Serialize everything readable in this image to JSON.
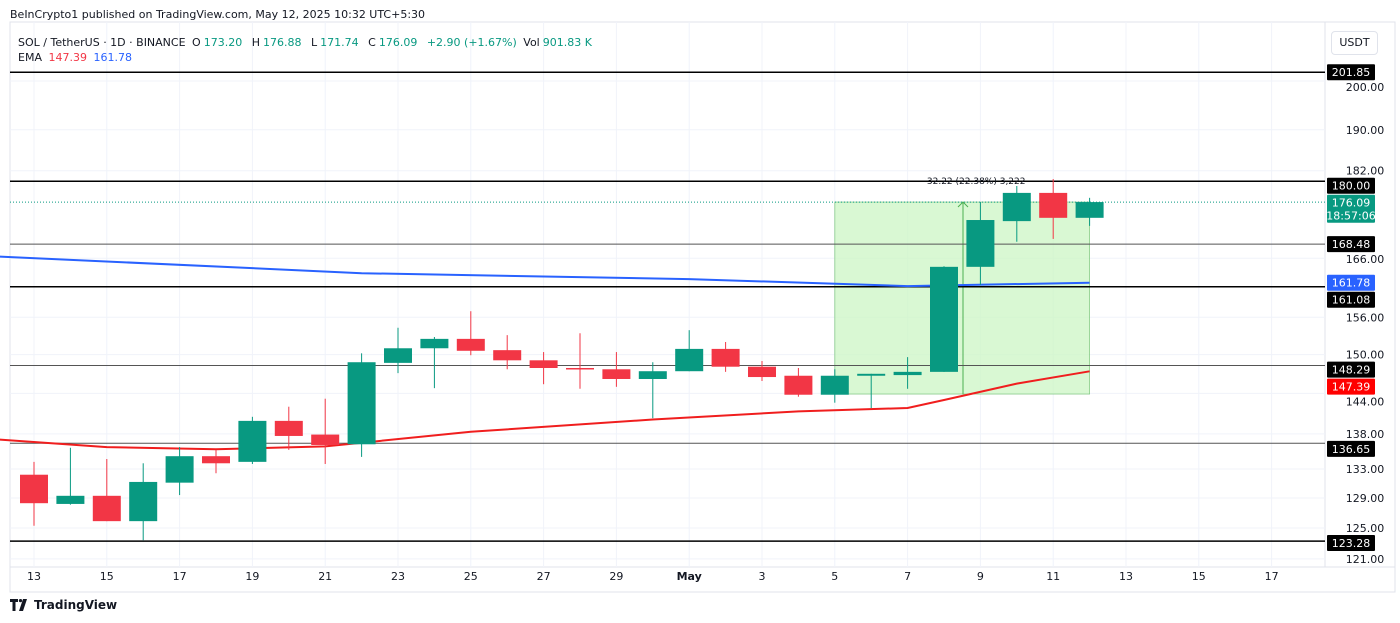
{
  "header": {
    "published": "BeInCrypto1 published on TradingView.com, May 12, 2025 10:32 UTC+5:30"
  },
  "legend": {
    "symbol": "SOL / TetherUS · 1D · BINANCE",
    "o_label": "O",
    "o": "173.20",
    "h_label": "H",
    "h": "176.88",
    "l_label": "L",
    "l": "171.74",
    "c_label": "C",
    "c": "176.09",
    "change": "+2.90 (+1.67%)",
    "vol_label": "Vol",
    "vol": "901.83 K",
    "ema_label": "EMA",
    "ema1": "147.39",
    "ema2": "161.78"
  },
  "currency_button": "USDT",
  "footer": {
    "logo_text": "TradingView"
  },
  "colors": {
    "up": "#089981",
    "down": "#f23645",
    "ema_slow": "#f01e1e",
    "ema_fast": "#2962ff",
    "measure_fill": "#ccf5c4",
    "measure_line": "#4caf50"
  },
  "chart_data": {
    "type": "candlestick",
    "y_scale": "log",
    "ylim": [
      120,
      205
    ],
    "grid": true,
    "y_ticks": [
      "200.00",
      "190.00",
      "182.00",
      "166.00",
      "156.00",
      "150.00",
      "144.00",
      "138.00",
      "133.00",
      "129.00",
      "125.00",
      "121.00"
    ],
    "x_ticks": [
      {
        "label": "13",
        "date": "2025-04-13"
      },
      {
        "label": "15",
        "date": "2025-04-15"
      },
      {
        "label": "17",
        "date": "2025-04-17"
      },
      {
        "label": "19",
        "date": "2025-04-19"
      },
      {
        "label": "21",
        "date": "2025-04-21"
      },
      {
        "label": "23",
        "date": "2025-04-23"
      },
      {
        "label": "25",
        "date": "2025-04-25"
      },
      {
        "label": "27",
        "date": "2025-04-27"
      },
      {
        "label": "29",
        "date": "2025-04-29"
      },
      {
        "label": "May",
        "date": "2025-05-01"
      },
      {
        "label": "3",
        "date": "2025-05-03"
      },
      {
        "label": "5",
        "date": "2025-05-05"
      },
      {
        "label": "7",
        "date": "2025-05-07"
      },
      {
        "label": "9",
        "date": "2025-05-09"
      },
      {
        "label": "11",
        "date": "2025-05-11"
      },
      {
        "label": "13",
        "date": "2025-05-13"
      },
      {
        "label": "15",
        "date": "2025-05-15"
      },
      {
        "label": "17",
        "date": "2025-05-17"
      }
    ],
    "candles": [
      {
        "date": "2025-04-13",
        "o": 132.2,
        "h": 134.0,
        "l": 125.3,
        "c": 128.3
      },
      {
        "date": "2025-04-14",
        "o": 128.2,
        "h": 136.0,
        "l": 128.1,
        "c": 129.3
      },
      {
        "date": "2025-04-15",
        "o": 129.3,
        "h": 134.4,
        "l": 125.9,
        "c": 125.9
      },
      {
        "date": "2025-04-16",
        "o": 125.9,
        "h": 133.8,
        "l": 123.4,
        "c": 131.2
      },
      {
        "date": "2025-04-17",
        "o": 131.1,
        "h": 136.1,
        "l": 129.4,
        "c": 134.8
      },
      {
        "date": "2025-04-18",
        "o": 134.8,
        "h": 135.7,
        "l": 132.4,
        "c": 133.8
      },
      {
        "date": "2025-04-19",
        "o": 134.0,
        "h": 140.5,
        "l": 133.7,
        "c": 139.9
      },
      {
        "date": "2025-04-20",
        "o": 139.9,
        "h": 142.0,
        "l": 135.7,
        "c": 137.7
      },
      {
        "date": "2025-04-21",
        "o": 137.9,
        "h": 143.2,
        "l": 133.7,
        "c": 136.4
      },
      {
        "date": "2025-04-22",
        "o": 136.5,
        "h": 150.2,
        "l": 134.7,
        "c": 148.8
      },
      {
        "date": "2025-04-23",
        "o": 148.7,
        "h": 154.3,
        "l": 147.1,
        "c": 151.0
      },
      {
        "date": "2025-04-24",
        "o": 151.0,
        "h": 152.8,
        "l": 144.8,
        "c": 152.5
      },
      {
        "date": "2025-04-25",
        "o": 152.5,
        "h": 157.0,
        "l": 149.9,
        "c": 150.6
      },
      {
        "date": "2025-04-26",
        "o": 150.7,
        "h": 153.1,
        "l": 147.7,
        "c": 149.1
      },
      {
        "date": "2025-04-27",
        "o": 149.1,
        "h": 150.4,
        "l": 145.4,
        "c": 147.9
      },
      {
        "date": "2025-04-28",
        "o": 147.9,
        "h": 153.4,
        "l": 144.7,
        "c": 147.7
      },
      {
        "date": "2025-04-29",
        "o": 147.7,
        "h": 150.4,
        "l": 145.0,
        "c": 146.2
      },
      {
        "date": "2025-04-30",
        "o": 146.2,
        "h": 148.8,
        "l": 140.3,
        "c": 147.4
      },
      {
        "date": "2025-05-01",
        "o": 147.4,
        "h": 153.9,
        "l": 147.4,
        "c": 150.9
      },
      {
        "date": "2025-05-02",
        "o": 150.9,
        "h": 152.0,
        "l": 147.3,
        "c": 148.1
      },
      {
        "date": "2025-05-03",
        "o": 148.1,
        "h": 149.0,
        "l": 145.9,
        "c": 146.5
      },
      {
        "date": "2025-05-04",
        "o": 146.7,
        "h": 147.9,
        "l": 143.5,
        "c": 143.8
      },
      {
        "date": "2025-05-05",
        "o": 143.8,
        "h": 147.7,
        "l": 142.6,
        "c": 146.7
      },
      {
        "date": "2025-05-06",
        "o": 146.7,
        "h": 147.0,
        "l": 141.8,
        "c": 147.0
      },
      {
        "date": "2025-05-07",
        "o": 146.8,
        "h": 149.6,
        "l": 144.7,
        "c": 147.3
      },
      {
        "date": "2025-05-08",
        "o": 147.3,
        "h": 164.6,
        "l": 147.3,
        "c": 164.5
      },
      {
        "date": "2025-05-09",
        "o": 164.5,
        "h": 176.1,
        "l": 161.4,
        "c": 172.8
      },
      {
        "date": "2025-05-10",
        "o": 172.6,
        "h": 179.1,
        "l": 168.9,
        "c": 177.8
      },
      {
        "date": "2025-05-11",
        "o": 177.8,
        "h": 180.4,
        "l": 169.4,
        "c": 173.2
      },
      {
        "date": "2025-05-12",
        "o": 173.2,
        "h": 176.88,
        "l": 171.74,
        "c": 176.09
      }
    ],
    "ema_fast": [
      {
        "date": "2025-04-13",
        "v": 166.2
      },
      {
        "date": "2025-04-22",
        "v": 163.4
      },
      {
        "date": "2025-05-01",
        "v": 162.4
      },
      {
        "date": "2025-05-07",
        "v": 161.2
      },
      {
        "date": "2025-05-12",
        "v": 161.78
      }
    ],
    "ema_slow": [
      {
        "date": "2025-04-13",
        "v": 137.0
      },
      {
        "date": "2025-04-15",
        "v": 136.1
      },
      {
        "date": "2025-04-18",
        "v": 135.8
      },
      {
        "date": "2025-04-21",
        "v": 136.2
      },
      {
        "date": "2025-04-25",
        "v": 138.3
      },
      {
        "date": "2025-04-30",
        "v": 140.1
      },
      {
        "date": "2025-05-04",
        "v": 141.3
      },
      {
        "date": "2025-05-07",
        "v": 141.8
      },
      {
        "date": "2025-05-08",
        "v": 143.0
      },
      {
        "date": "2025-05-10",
        "v": 145.5
      },
      {
        "date": "2025-05-12",
        "v": 147.39
      }
    ],
    "horizontal_levels": [
      {
        "value": 201.85,
        "label": "201.85"
      },
      {
        "value": 180.0,
        "label": "180.00"
      },
      {
        "value": 168.48,
        "label": "168.48"
      },
      {
        "value": 161.08,
        "label": "161.08"
      },
      {
        "value": 148.29,
        "label": "148.29"
      },
      {
        "value": 136.65,
        "label": "136.65"
      },
      {
        "value": 123.28,
        "label": "123.28"
      }
    ],
    "price_labels": {
      "last": "176.09",
      "countdown": "18:57:06",
      "ema_fast": "161.78",
      "ema_slow": "147.39"
    },
    "measure": {
      "start_date": "2025-05-05",
      "end_date": "2025-05-12",
      "low": 143.9,
      "high": 176.1,
      "arrow_date": "2025-05-08",
      "label": "32.22 (22.38%) 3,222"
    }
  }
}
